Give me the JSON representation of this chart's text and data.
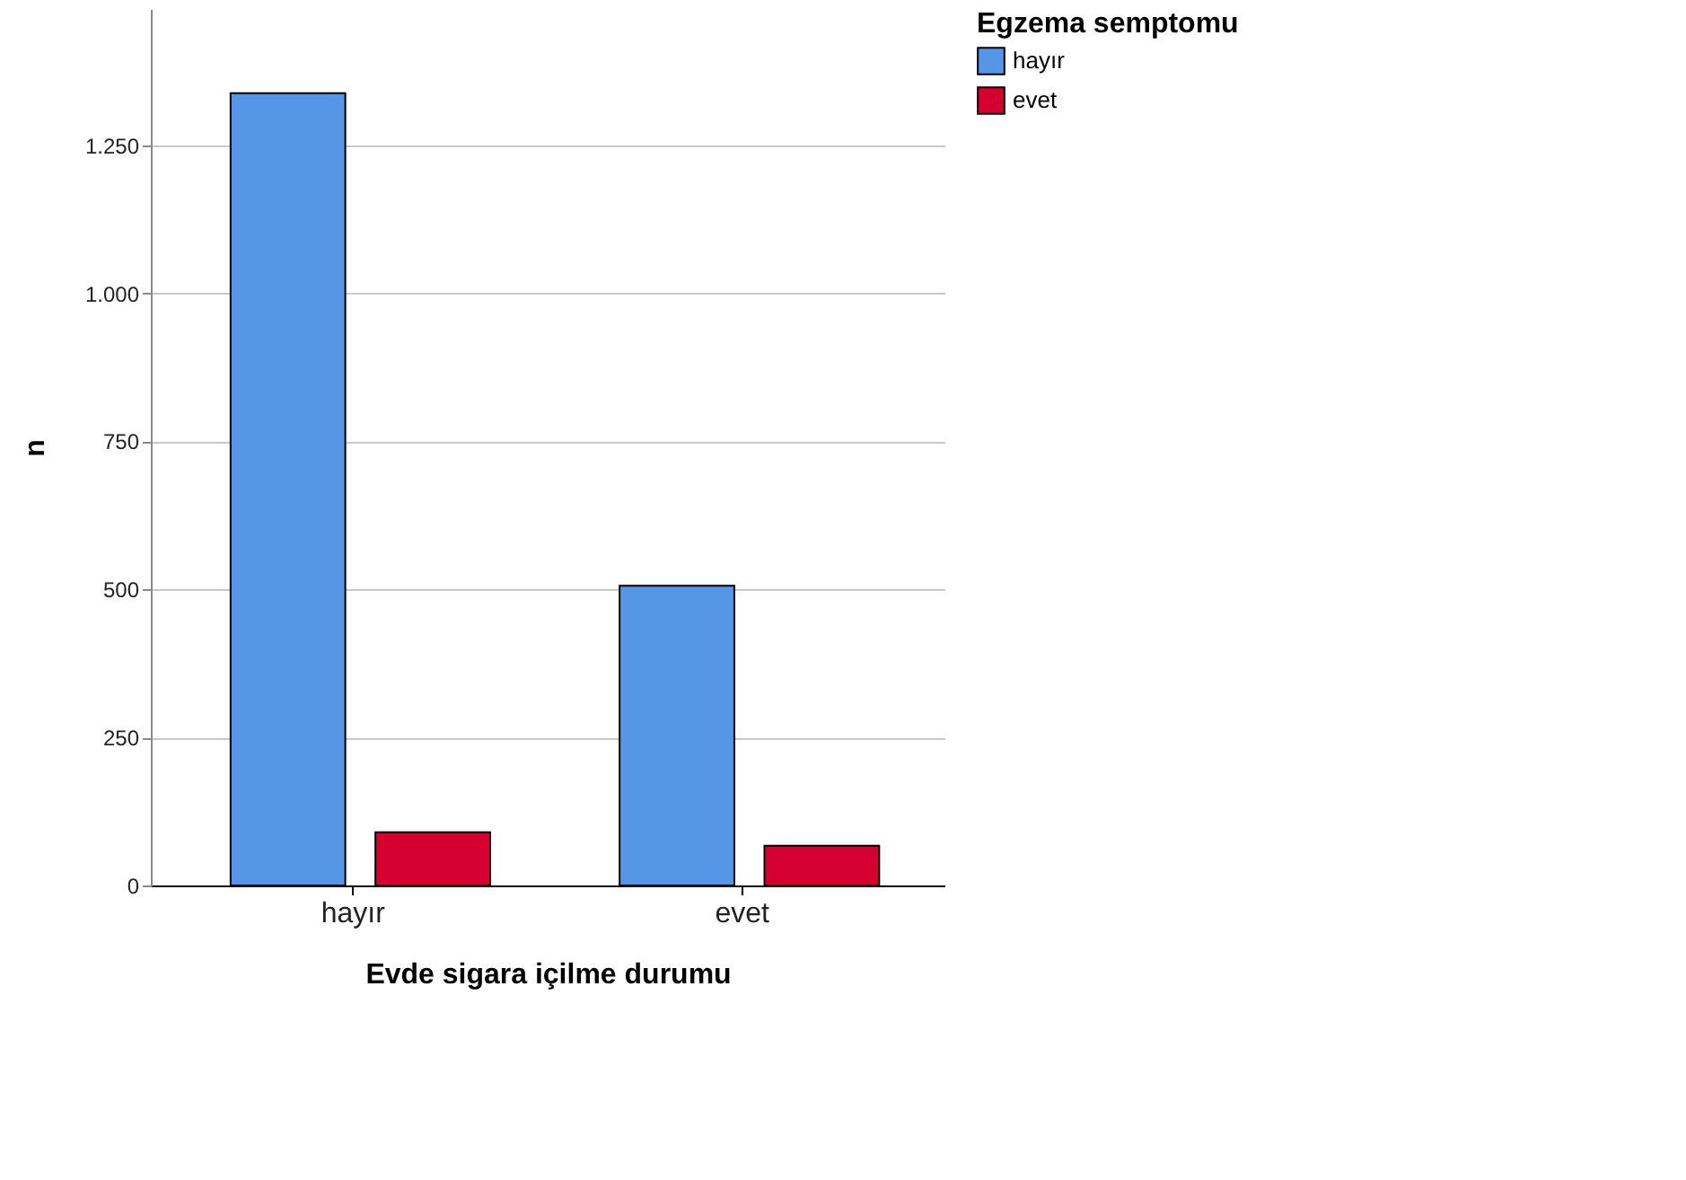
{
  "chart_data": {
    "type": "bar",
    "xlabel": "Evde sigara içilme durumu",
    "ylabel": "n",
    "legend_title": "Egzema semptomu",
    "categories": [
      "hayır",
      "evet"
    ],
    "series": [
      {
        "name": "hayır",
        "color": "#5596e6",
        "values": [
          1338,
          506
        ]
      },
      {
        "name": "evet",
        "color": "#d5002f",
        "values": [
          90,
          67
        ]
      }
    ],
    "ylim": [
      0,
      1480
    ],
    "yticks": [
      0,
      250,
      500,
      750,
      {
        "value": 1000,
        "label": "1.000"
      },
      {
        "value": 1250,
        "label": "1.250"
      }
    ],
    "grid": "y",
    "legend": "top right"
  }
}
